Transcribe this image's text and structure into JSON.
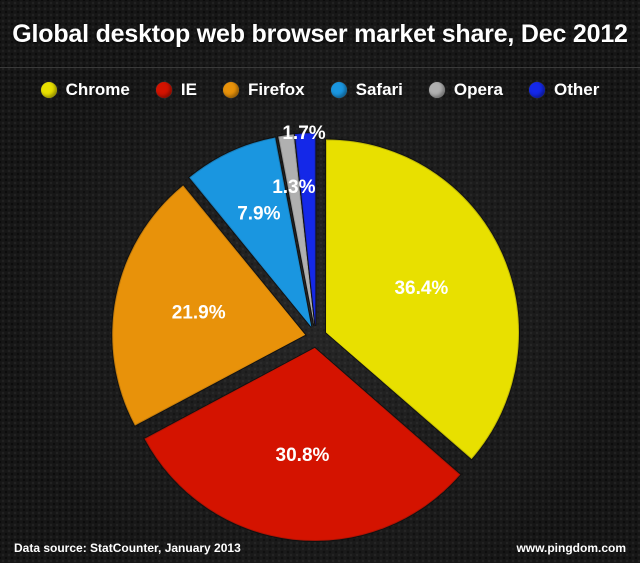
{
  "chart_data": {
    "type": "pie",
    "title": "Global desktop web browser market share, Dec 2012",
    "legend_position": "top",
    "categories": [
      "Chrome",
      "IE",
      "Firefox",
      "Safari",
      "Opera",
      "Other"
    ],
    "values": [
      36.4,
      30.8,
      21.9,
      7.9,
      1.3,
      1.7
    ],
    "labels": [
      "36.4%",
      "30.8%",
      "21.9%",
      "7.9%",
      "1.3%",
      "1.7%"
    ],
    "colors": [
      "#e8e000",
      "#d41300",
      "#e8920a",
      "#1a96e0",
      "#b0b0b0",
      "#1428e8"
    ]
  },
  "footer": {
    "source": "Data source: StatCounter, January 2013",
    "site": "www.pingdom.com"
  }
}
